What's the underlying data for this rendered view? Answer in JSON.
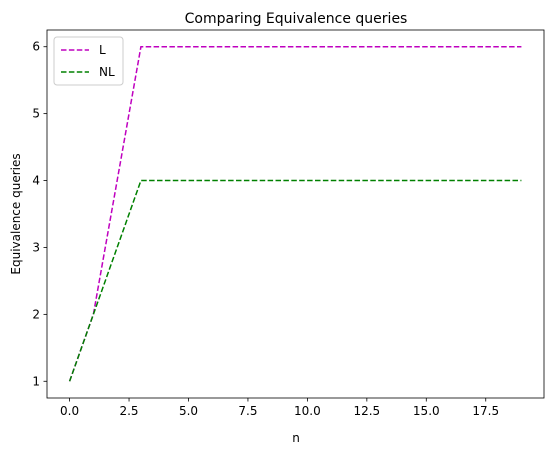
{
  "chart_data": {
    "type": "line",
    "title": "Comparing Equivalence queries",
    "xlabel": "n",
    "ylabel": "Equivalence queries",
    "xlim": [
      -0.95,
      19.95
    ],
    "ylim": [
      0.75,
      6.25
    ],
    "xticks": [
      0.0,
      2.5,
      5.0,
      7.5,
      10.0,
      12.5,
      15.0,
      17.5
    ],
    "xtick_labels": [
      "0.0",
      "2.5",
      "5.0",
      "7.5",
      "10.0",
      "12.5",
      "15.0",
      "17.5"
    ],
    "yticks": [
      1,
      2,
      3,
      4,
      5,
      6
    ],
    "ytick_labels": [
      "1",
      "2",
      "3",
      "4",
      "5",
      "6"
    ],
    "grid": false,
    "legend_position": "upper-left",
    "x": [
      0,
      1,
      2,
      3,
      4,
      5,
      6,
      7,
      8,
      9,
      10,
      11,
      12,
      13,
      14,
      15,
      16,
      17,
      18,
      19
    ],
    "series": [
      {
        "name": "L",
        "color": "#bf00bf",
        "linestyle": "dashed",
        "values": [
          1,
          2,
          4,
          6,
          6,
          6,
          6,
          6,
          6,
          6,
          6,
          6,
          6,
          6,
          6,
          6,
          6,
          6,
          6,
          6
        ]
      },
      {
        "name": "NL",
        "color": "#008000",
        "linestyle": "dashed",
        "values": [
          1,
          2,
          3,
          4,
          4,
          4,
          4,
          4,
          4,
          4,
          4,
          4,
          4,
          4,
          4,
          4,
          4,
          4,
          4,
          4
        ]
      }
    ]
  }
}
